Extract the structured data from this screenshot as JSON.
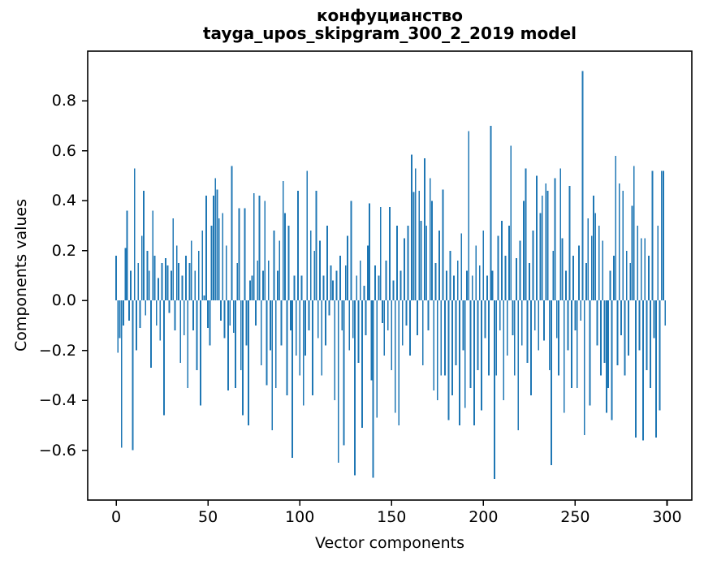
{
  "figure": {
    "title_line1": "конфуцианство",
    "title_line2": "tayga_upos_skipgram_300_2_2019 model",
    "xlabel": "Vector components",
    "ylabel": "Components values"
  },
  "colors": {
    "bar": "#1f77b4",
    "axis": "#000000",
    "background": "#ffffff"
  },
  "chart_data": {
    "type": "bar",
    "title": "конфуцианство — tayga_upos_skipgram_300_2_2019 model",
    "xlabel": "Vector components",
    "ylabel": "Components values",
    "legend": null,
    "grid": false,
    "n_components": 300,
    "xlim": [
      -15.5,
      313.5
    ],
    "ylim": [
      -0.8,
      1.0
    ],
    "x_ticks": [
      0,
      50,
      100,
      150,
      200,
      250,
      300
    ],
    "x_tick_labels": [
      "0",
      "50",
      "100",
      "150",
      "200",
      "250",
      "300"
    ],
    "y_ticks": [
      -0.6,
      -0.4,
      -0.2,
      0.0,
      0.2,
      0.4,
      0.6,
      0.8
    ],
    "y_tick_labels": [
      "−0.6",
      "−0.4",
      "−0.2",
      "0.0",
      "0.2",
      "0.4",
      "0.6",
      "0.8"
    ],
    "bar_color": "#1f77b4",
    "values": [
      0.18,
      -0.21,
      -0.15,
      -0.59,
      -0.1,
      0.21,
      0.36,
      -0.08,
      0.12,
      -0.6,
      0.53,
      -0.2,
      0.15,
      -0.11,
      0.26,
      0.44,
      -0.06,
      0.2,
      0.12,
      -0.27,
      0.36,
      0.18,
      -0.1,
      0.09,
      -0.16,
      0.15,
      -0.46,
      0.17,
      0.14,
      -0.05,
      0.12,
      0.33,
      -0.12,
      0.22,
      0.15,
      -0.25,
      0.1,
      -0.14,
      0.18,
      -0.35,
      0.15,
      0.24,
      -0.12,
      0.12,
      -0.28,
      0.2,
      -0.42,
      0.28,
      0.02,
      0.42,
      -0.11,
      -0.18,
      0.3,
      0.42,
      0.49,
      0.445,
      0.33,
      -0.08,
      0.35,
      -0.15,
      0.22,
      -0.36,
      -0.1,
      0.54,
      -0.13,
      -0.35,
      0.15,
      0.37,
      -0.28,
      -0.46,
      0.37,
      -0.18,
      -0.5,
      0.08,
      0.1,
      0.43,
      -0.1,
      0.16,
      0.42,
      -0.26,
      0.12,
      0.4,
      -0.34,
      0.16,
      -0.2,
      -0.52,
      0.28,
      -0.35,
      0.12,
      0.24,
      -0.18,
      0.48,
      0.35,
      -0.38,
      0.3,
      -0.12,
      -0.63,
      0.1,
      -0.22,
      0.44,
      -0.3,
      0.1,
      -0.42,
      -0.22,
      0.52,
      -0.12,
      0.28,
      -0.38,
      0.2,
      0.44,
      -0.15,
      0.24,
      -0.3,
      0.1,
      -0.18,
      0.3,
      -0.06,
      0.14,
      0.08,
      -0.4,
      0.12,
      -0.65,
      0.18,
      -0.12,
      -0.58,
      0.14,
      0.26,
      -0.2,
      0.4,
      -0.15,
      -0.7,
      0.1,
      -0.25,
      0.16,
      -0.51,
      0.06,
      -0.14,
      0.22,
      0.39,
      -0.32,
      -0.71,
      0.14,
      -0.47,
      0.1,
      0.375,
      -0.09,
      -0.22,
      0.16,
      -0.12,
      0.375,
      -0.28,
      0.08,
      -0.45,
      0.3,
      -0.5,
      0.12,
      -0.18,
      0.25,
      -0.1,
      0.3,
      -0.22,
      0.585,
      0.435,
      0.53,
      -0.14,
      0.44,
      0.32,
      -0.26,
      0.57,
      0.3,
      -0.12,
      0.49,
      0.4,
      -0.36,
      0.15,
      -0.4,
      0.28,
      -0.3,
      0.445,
      -0.3,
      0.12,
      -0.48,
      0.2,
      -0.38,
      0.1,
      -0.26,
      0.16,
      -0.5,
      0.27,
      -0.2,
      -0.43,
      0.12,
      0.68,
      -0.35,
      0.1,
      -0.5,
      0.22,
      -0.28,
      0.14,
      -0.44,
      0.28,
      -0.15,
      0.1,
      -0.3,
      0.7,
      0.12,
      -0.715,
      -0.3,
      0.26,
      -0.12,
      0.32,
      -0.4,
      0.18,
      -0.22,
      0.3,
      0.62,
      -0.14,
      -0.3,
      0.17,
      -0.52,
      0.24,
      -0.18,
      0.4,
      0.53,
      -0.25,
      0.15,
      -0.38,
      0.28,
      -0.12,
      0.5,
      -0.2,
      0.35,
      0.42,
      -0.16,
      0.47,
      0.44,
      -0.28,
      -0.66,
      0.2,
      0.49,
      -0.15,
      -0.3,
      0.53,
      0.25,
      -0.45,
      0.12,
      -0.2,
      0.46,
      -0.35,
      0.18,
      -0.12,
      -0.35,
      0.22,
      -0.08,
      0.92,
      -0.54,
      0.15,
      0.33,
      -0.42,
      0.26,
      0.42,
      0.35,
      -0.18,
      0.3,
      -0.3,
      0.24,
      -0.25,
      -0.45,
      -0.35,
      0.12,
      -0.48,
      0.18,
      0.58,
      -0.26,
      0.47,
      -0.14,
      0.44,
      -0.3,
      0.2,
      -0.22,
      0.15,
      0.38,
      0.54,
      -0.55,
      0.3,
      -0.2,
      0.25,
      -0.56,
      0.25,
      -0.28,
      0.18,
      -0.35,
      0.52,
      -0.15,
      -0.55,
      0.3,
      -0.44,
      0.52,
      0.52,
      -0.1
    ]
  },
  "layout_text": {
    "note": ""
  }
}
